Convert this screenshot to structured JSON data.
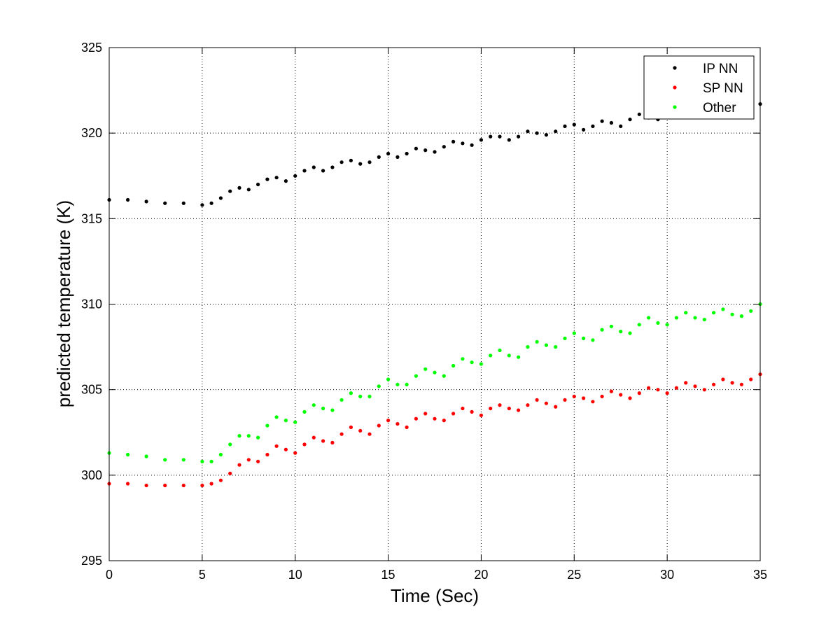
{
  "chart_data": {
    "type": "scatter",
    "xlabel": "Time (Sec)",
    "ylabel": "predicted temperature (K)",
    "xlim": [
      0,
      35
    ],
    "ylim": [
      295,
      325
    ],
    "xticks": [
      0,
      5,
      10,
      15,
      20,
      25,
      30,
      35
    ],
    "yticks": [
      295,
      300,
      305,
      310,
      315,
      320,
      325
    ],
    "xtick_labels": [
      "0",
      "5",
      "10",
      "15",
      "20",
      "25",
      "30",
      "35"
    ],
    "ytick_labels": [
      "295",
      "300",
      "305",
      "310",
      "315",
      "320",
      "325"
    ],
    "grid": true,
    "legend_position": "top-right",
    "series": [
      {
        "name": "IP NN",
        "color": "#000000",
        "x": [
          0,
          1,
          2,
          3,
          4,
          5,
          5.5,
          6,
          6.5,
          7,
          7.5,
          8,
          8.5,
          9,
          9.5,
          10,
          10.5,
          11,
          11.5,
          12,
          12.5,
          13,
          13.5,
          14,
          14.5,
          15,
          15.5,
          16,
          16.5,
          17,
          17.5,
          18,
          18.5,
          19,
          19.5,
          20,
          20.5,
          21,
          21.5,
          22,
          22.5,
          23,
          23.5,
          24,
          24.5,
          25,
          25.5,
          26,
          26.5,
          27,
          27.5,
          28,
          28.5,
          29,
          29.5,
          30,
          30.5,
          31,
          31.5,
          32,
          32.5,
          33,
          33.5,
          34,
          34.5,
          35
        ],
        "y": [
          316.1,
          316.1,
          316.0,
          315.9,
          315.9,
          315.8,
          315.9,
          316.2,
          316.6,
          316.8,
          316.7,
          317.0,
          317.3,
          317.4,
          317.2,
          317.5,
          317.8,
          318.0,
          317.8,
          318.0,
          318.3,
          318.4,
          318.2,
          318.3,
          318.6,
          318.8,
          318.6,
          318.8,
          319.1,
          319.0,
          318.9,
          319.2,
          319.5,
          319.4,
          319.3,
          319.6,
          319.8,
          319.8,
          319.6,
          319.8,
          320.1,
          320.0,
          319.9,
          320.1,
          320.4,
          320.5,
          320.2,
          320.4,
          320.7,
          320.6,
          320.4,
          320.8,
          321.1,
          320.9,
          320.8,
          321.1,
          321.3,
          321.2,
          321.0,
          321.3,
          321.6,
          321.5,
          321.3,
          321.6,
          321.9,
          321.7
        ]
      },
      {
        "name": "SP NN",
        "color": "#ff0000",
        "x": [
          0,
          1,
          2,
          3,
          4,
          5,
          5.5,
          6,
          6.5,
          7,
          7.5,
          8,
          8.5,
          9,
          9.5,
          10,
          10.5,
          11,
          11.5,
          12,
          12.5,
          13,
          13.5,
          14,
          14.5,
          15,
          15.5,
          16,
          16.5,
          17,
          17.5,
          18,
          18.5,
          19,
          19.5,
          20,
          20.5,
          21,
          21.5,
          22,
          22.5,
          23,
          23.5,
          24,
          24.5,
          25,
          25.5,
          26,
          26.5,
          27,
          27.5,
          28,
          28.5,
          29,
          29.5,
          30,
          30.5,
          31,
          31.5,
          32,
          32.5,
          33,
          33.5,
          34,
          34.5,
          35
        ],
        "y": [
          299.5,
          299.5,
          299.4,
          299.4,
          299.4,
          299.4,
          299.5,
          299.7,
          300.1,
          300.6,
          300.9,
          300.8,
          301.2,
          301.7,
          301.5,
          301.3,
          301.8,
          302.2,
          302.0,
          301.9,
          302.4,
          302.8,
          302.6,
          302.4,
          302.9,
          303.2,
          303.0,
          302.8,
          303.3,
          303.6,
          303.3,
          303.2,
          303.6,
          303.9,
          303.7,
          303.5,
          303.9,
          304.1,
          303.9,
          303.8,
          304.1,
          304.4,
          304.2,
          304.0,
          304.4,
          304.6,
          304.5,
          304.3,
          304.6,
          304.9,
          304.7,
          304.5,
          304.8,
          305.1,
          305.0,
          304.8,
          305.1,
          305.4,
          305.2,
          305.0,
          305.3,
          305.6,
          305.4,
          305.3,
          305.6,
          305.9
        ]
      },
      {
        "name": "Other",
        "color": "#00ff00",
        "x": [
          0,
          1,
          2,
          3,
          4,
          5,
          5.5,
          6,
          6.5,
          7,
          7.5,
          8,
          8.5,
          9,
          9.5,
          10,
          10.5,
          11,
          11.5,
          12,
          12.5,
          13,
          13.5,
          14,
          14.5,
          15,
          15.5,
          16,
          16.5,
          17,
          17.5,
          18,
          18.5,
          19,
          19.5,
          20,
          20.5,
          21,
          21.5,
          22,
          22.5,
          23,
          23.5,
          24,
          24.5,
          25,
          25.5,
          26,
          26.5,
          27,
          27.5,
          28,
          28.5,
          29,
          29.5,
          30,
          30.5,
          31,
          31.5,
          32,
          32.5,
          33,
          33.5,
          34,
          34.5,
          35
        ],
        "y": [
          301.3,
          301.2,
          301.1,
          300.9,
          300.9,
          300.8,
          300.8,
          301.2,
          301.8,
          302.3,
          302.3,
          302.2,
          302.9,
          303.4,
          303.2,
          303.1,
          303.7,
          304.1,
          303.9,
          303.8,
          304.4,
          304.8,
          304.6,
          304.6,
          305.2,
          305.6,
          305.3,
          305.3,
          305.8,
          306.2,
          306.0,
          305.8,
          306.4,
          306.8,
          306.6,
          306.5,
          307.0,
          307.3,
          307.0,
          306.9,
          307.5,
          307.8,
          307.6,
          307.5,
          308.0,
          308.3,
          308.0,
          307.9,
          308.5,
          308.7,
          308.4,
          308.3,
          308.8,
          309.2,
          308.9,
          308.8,
          309.2,
          309.5,
          309.2,
          309.1,
          309.5,
          309.7,
          309.4,
          309.3,
          309.6,
          310.0
        ]
      }
    ]
  }
}
